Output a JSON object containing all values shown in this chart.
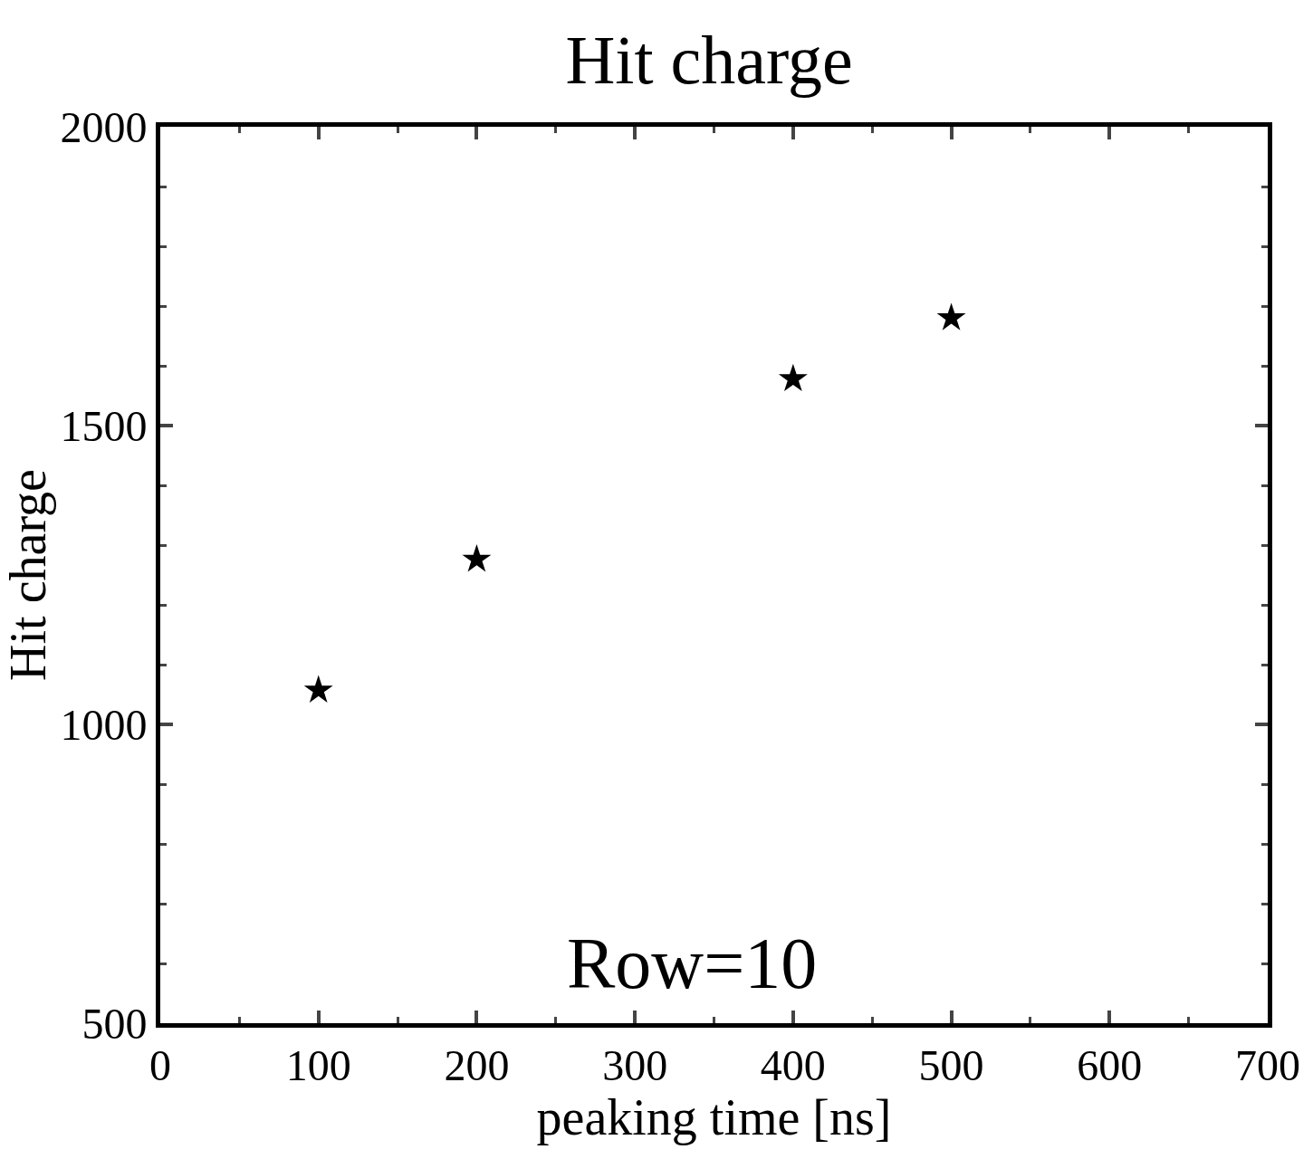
{
  "chart_data": {
    "type": "scatter",
    "title": "Hit charge",
    "xlabel": "peaking time [ns]",
    "ylabel": "Hit charge",
    "x": [
      100,
      200,
      400,
      500
    ],
    "series": [
      {
        "color": "#000000",
        "values": [
          1057,
          1276,
          1578,
          1680
        ]
      }
    ],
    "marker": "star",
    "xlim": [
      0,
      700
    ],
    "ylim": [
      500,
      2000
    ],
    "xticks": [
      0,
      100,
      200,
      300,
      400,
      500,
      600,
      700
    ],
    "yticks": [
      500,
      1000,
      1500,
      2000
    ],
    "annotations": [
      "Row=10"
    ]
  }
}
